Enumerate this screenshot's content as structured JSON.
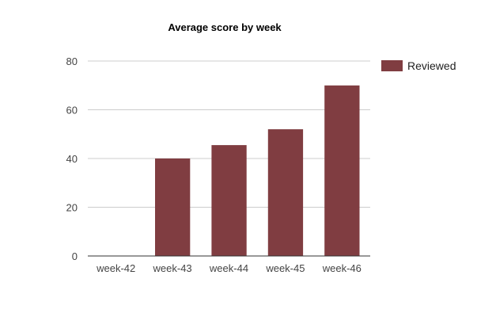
{
  "chart_data": {
    "type": "bar",
    "title": "Average score by week",
    "xlabel": "",
    "ylabel": "",
    "categories": [
      "week-42",
      "week-43",
      "week-44",
      "week-45",
      "week-46"
    ],
    "series": [
      {
        "name": "Reviewed",
        "color": "#803d41",
        "values": [
          0,
          40,
          45.5,
          52,
          70
        ]
      }
    ],
    "ylim": [
      0,
      80
    ],
    "yticks": [
      0,
      20,
      40,
      60,
      80
    ],
    "grid": true,
    "legend_position": "right"
  }
}
